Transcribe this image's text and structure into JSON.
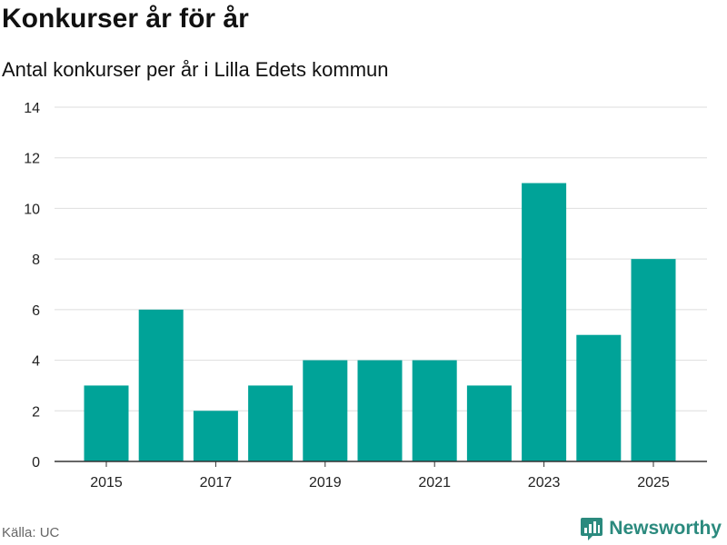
{
  "chart_data": {
    "type": "bar",
    "title": "Konkurser år för år",
    "subtitle": "Antal konkurser per år i Lilla Edets kommun",
    "categories": [
      "2015",
      "2016",
      "2017",
      "2018",
      "2019",
      "2020",
      "2021",
      "2022",
      "2023",
      "2024",
      "2025"
    ],
    "values": [
      3,
      6,
      2,
      3,
      4,
      4,
      4,
      3,
      11,
      5,
      8
    ],
    "x_tick_labels": [
      "2015",
      "2017",
      "2019",
      "2021",
      "2023",
      "2025"
    ],
    "y_ticks": [
      "0",
      "2",
      "4",
      "6",
      "8",
      "10",
      "12",
      "14"
    ],
    "ylim": [
      0,
      14
    ],
    "xlabel": "",
    "ylabel": "",
    "grid": true,
    "bar_color": "#00a398"
  },
  "footer": {
    "source": "Källa: UC",
    "brand": "Newsworthy",
    "brand_icon": "newsworthy-logo-icon",
    "brand_color": "#2b8a7e"
  }
}
